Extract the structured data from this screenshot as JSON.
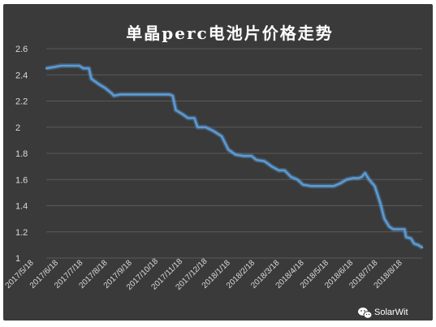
{
  "colors": {
    "background": "#3a3a3a",
    "gridline": "#5a5a5a",
    "line": "#5b9bd5",
    "text": "#d9d9d9"
  },
  "watermark": {
    "icon": "wechat-icon",
    "text": "SolarWit"
  },
  "chart_data": {
    "type": "line",
    "title": "单晶perc电池片价格走势",
    "xlabel": "",
    "ylabel": "",
    "ylim": [
      1,
      2.6
    ],
    "y_ticks": [
      "2.6",
      "2.4",
      "2.2",
      "2",
      "1.8",
      "1.6",
      "1.4",
      "1.2",
      "1"
    ],
    "grid": true,
    "legend": "none",
    "x_tick_labels": [
      "2017/5/18",
      "2017/6/18",
      "2017/7/18",
      "2017/8/18",
      "2017/9/18",
      "2017/10/18",
      "2017/11/18",
      "2017/12/18",
      "2018/1/18",
      "2018/2/18",
      "2018/3/18",
      "2018/4/18",
      "2018/5/18",
      "2018/6/18",
      "2018/7/18",
      "2018/8/18"
    ],
    "x_range": [
      "2017-05-18",
      "2018-08-28"
    ],
    "series": [
      {
        "points": [
          [
            "2017-05-18",
            2.45
          ],
          [
            "2017-05-28",
            2.46
          ],
          [
            "2017-06-05",
            2.47
          ],
          [
            "2017-06-18",
            2.47
          ],
          [
            "2017-06-28",
            2.47
          ],
          [
            "2017-07-03",
            2.45
          ],
          [
            "2017-07-10",
            2.45
          ],
          [
            "2017-07-13",
            2.37
          ],
          [
            "2017-07-22",
            2.33
          ],
          [
            "2017-07-30",
            2.3
          ],
          [
            "2017-08-07",
            2.26
          ],
          [
            "2017-08-10",
            2.24
          ],
          [
            "2017-08-18",
            2.25
          ],
          [
            "2017-09-18",
            2.25
          ],
          [
            "2017-10-18",
            2.25
          ],
          [
            "2017-10-22",
            2.24
          ],
          [
            "2017-10-26",
            2.13
          ],
          [
            "2017-11-03",
            2.1
          ],
          [
            "2017-11-10",
            2.07
          ],
          [
            "2017-11-18",
            2.07
          ],
          [
            "2017-11-22",
            2.0
          ],
          [
            "2017-12-02",
            2.0
          ],
          [
            "2017-12-12",
            1.97
          ],
          [
            "2017-12-22",
            1.93
          ],
          [
            "2017-12-30",
            1.83
          ],
          [
            "2018-01-08",
            1.79
          ],
          [
            "2018-01-18",
            1.78
          ],
          [
            "2018-01-28",
            1.78
          ],
          [
            "2018-02-03",
            1.75
          ],
          [
            "2018-02-13",
            1.74
          ],
          [
            "2018-02-22",
            1.7
          ],
          [
            "2018-03-03",
            1.67
          ],
          [
            "2018-03-10",
            1.67
          ],
          [
            "2018-03-18",
            1.62
          ],
          [
            "2018-03-26",
            1.6
          ],
          [
            "2018-04-02",
            1.56
          ],
          [
            "2018-04-12",
            1.55
          ],
          [
            "2018-05-10",
            1.55
          ],
          [
            "2018-05-18",
            1.57
          ],
          [
            "2018-05-26",
            1.6
          ],
          [
            "2018-06-03",
            1.61
          ],
          [
            "2018-06-10",
            1.61
          ],
          [
            "2018-06-14",
            1.62
          ],
          [
            "2018-06-18",
            1.65
          ],
          [
            "2018-06-23",
            1.6
          ],
          [
            "2018-06-30",
            1.55
          ],
          [
            "2018-07-07",
            1.42
          ],
          [
            "2018-07-12",
            1.3
          ],
          [
            "2018-07-18",
            1.24
          ],
          [
            "2018-07-23",
            1.22
          ],
          [
            "2018-07-31",
            1.22
          ],
          [
            "2018-08-06",
            1.22
          ],
          [
            "2018-08-08",
            1.16
          ],
          [
            "2018-08-14",
            1.15
          ],
          [
            "2018-08-18",
            1.11
          ],
          [
            "2018-08-23",
            1.1
          ],
          [
            "2018-08-28",
            1.08
          ]
        ]
      }
    ]
  }
}
